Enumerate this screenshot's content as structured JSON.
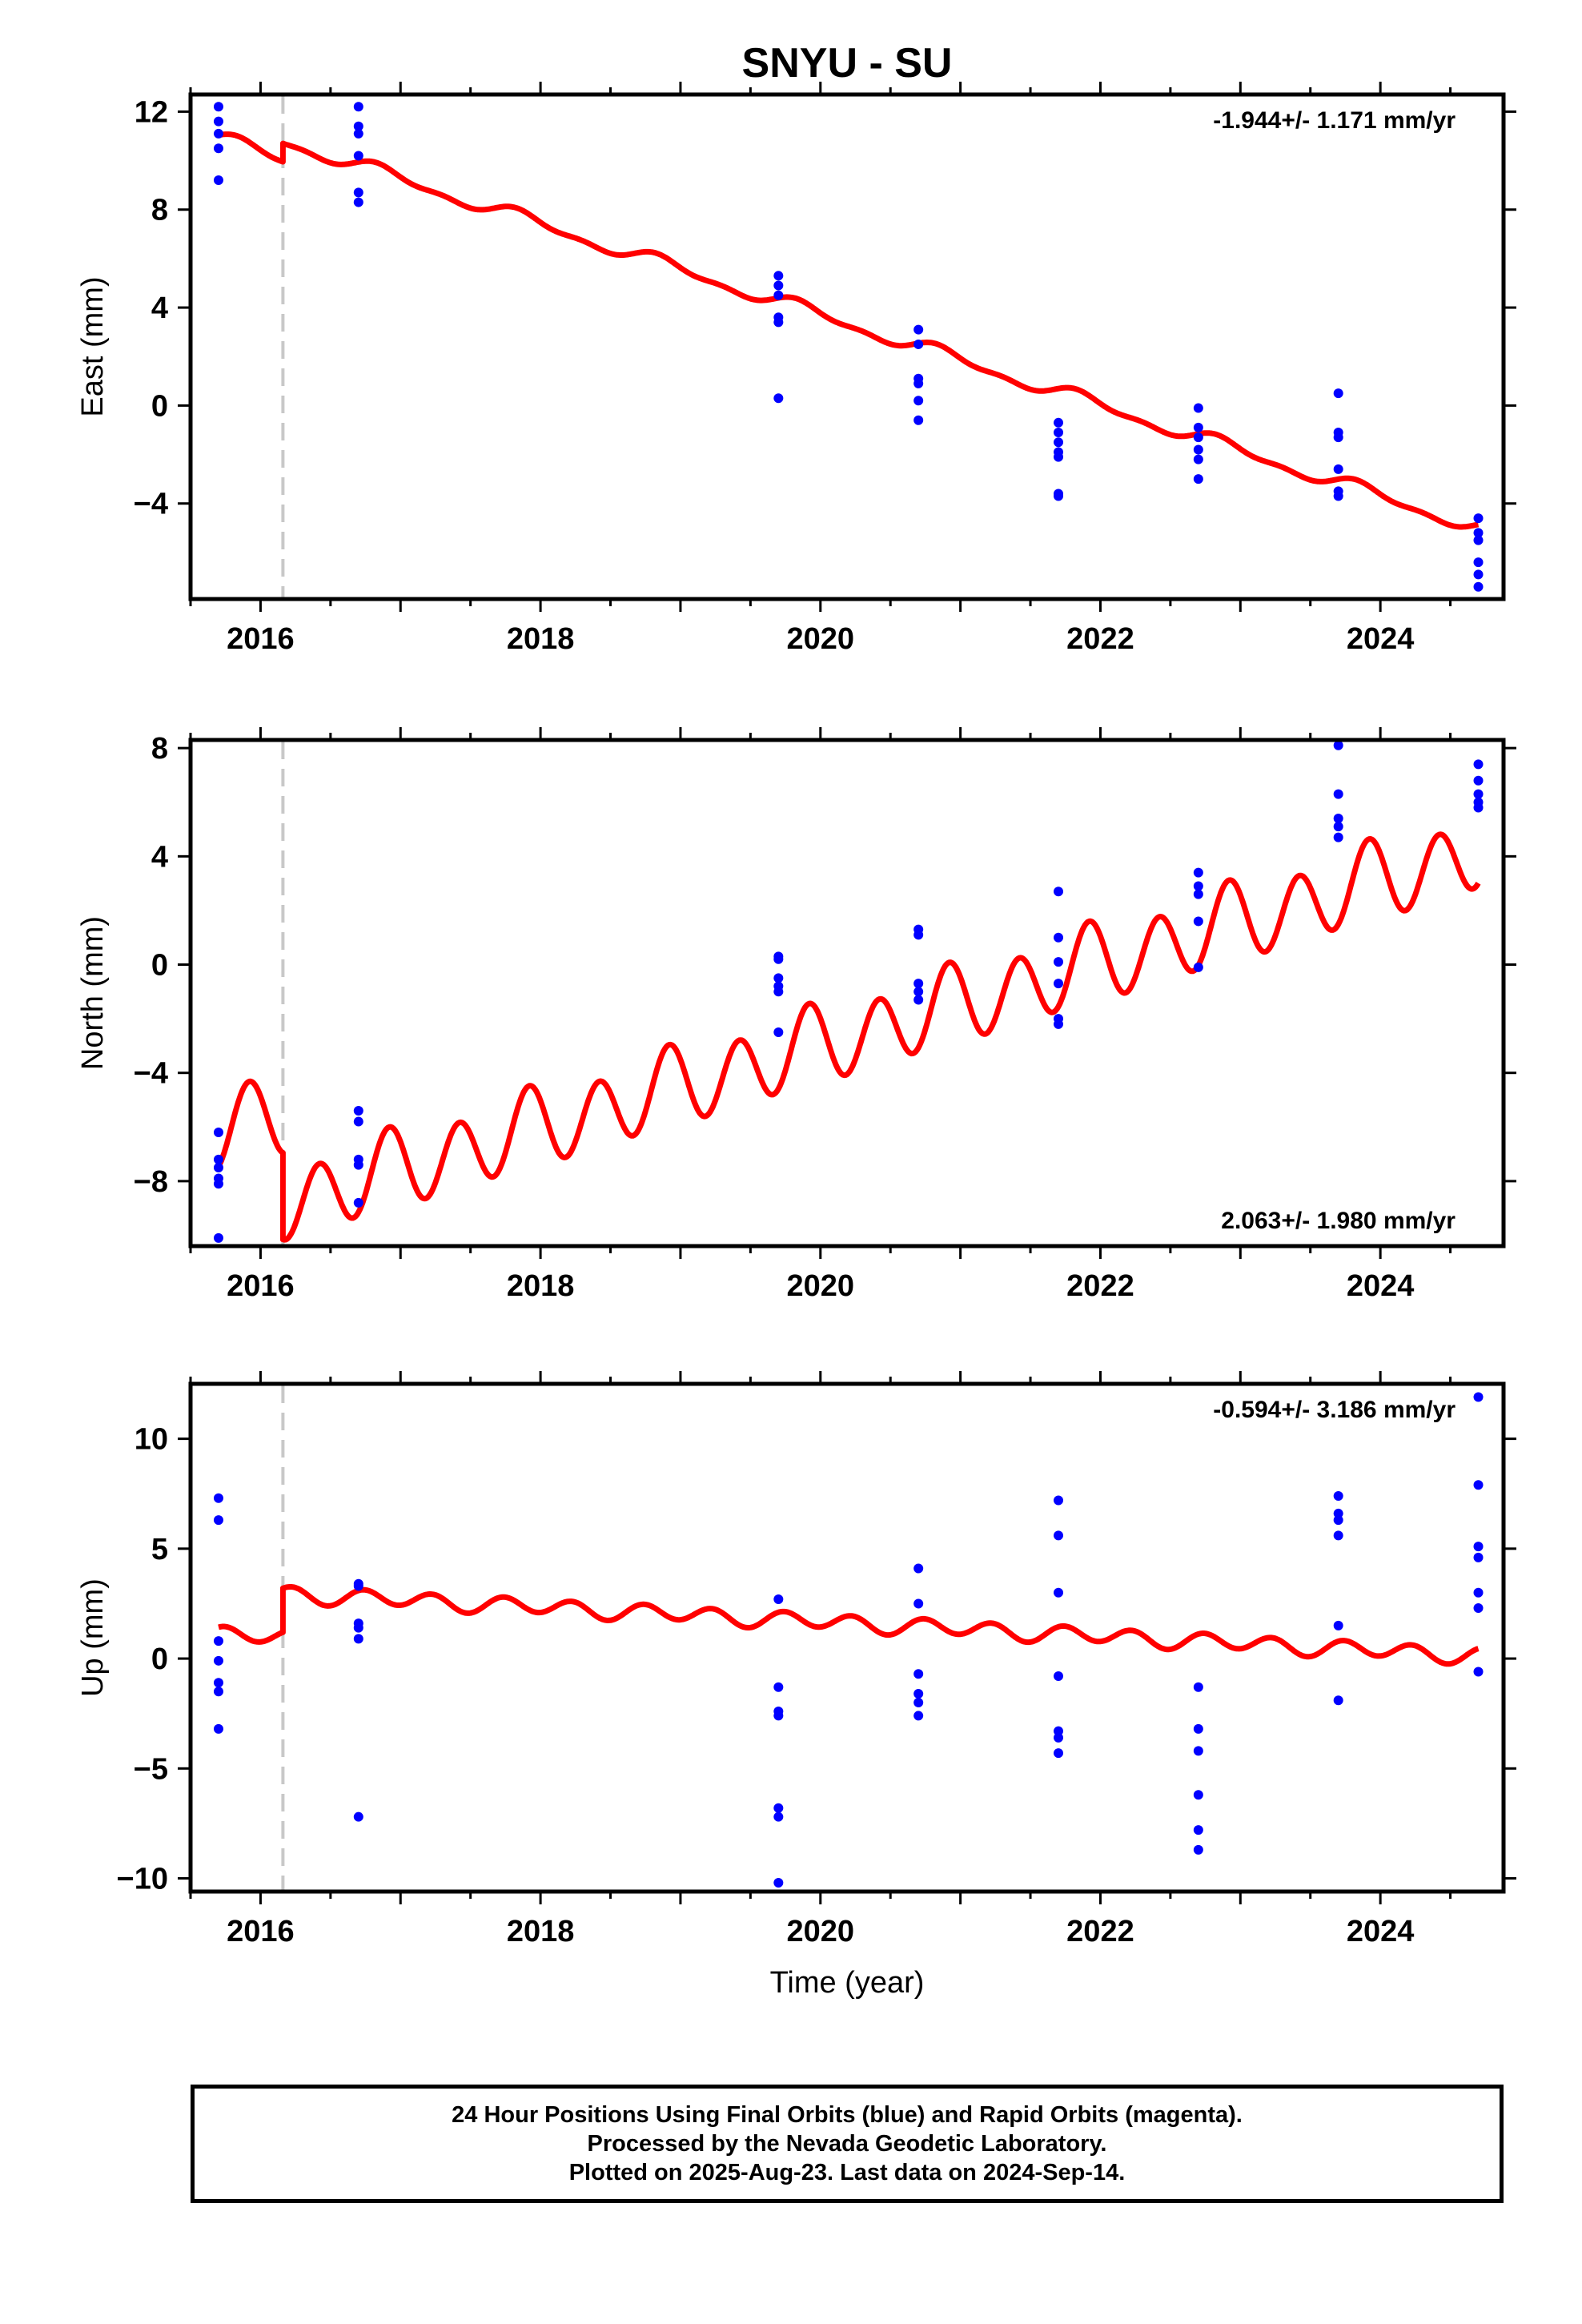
{
  "title": "SNYU - SU",
  "xlabel": "Time (year)",
  "colors": {
    "data": "#0000ff",
    "model": "#ff0000",
    "offset_line": "#c8c8c8",
    "frame": "#000000"
  },
  "footer": {
    "line1": "24 Hour Positions Using Final Orbits (blue) and Rapid Orbits (magenta).",
    "line2": "Processed by the Nevada Geodetic Laboratory.",
    "line3": "Plotted on 2025-Aug-23. Last data on 2024-Sep-14."
  },
  "chart_data": [
    {
      "type": "scatter",
      "ylabel": "East (mm)",
      "rate_text": "-1.944+/- 1.171 mm/yr",
      "rate_position": "top-right",
      "xlim": [
        2015.5,
        2024.88
      ],
      "ylim": [
        -7.9,
        12.7
      ],
      "yticks": [
        -4,
        0,
        4,
        8,
        12
      ],
      "ytick_labels": [
        "−4",
        "0",
        "4",
        "8",
        "12"
      ],
      "xticks": [
        2016,
        2018,
        2020,
        2022,
        2024
      ],
      "xtick_labels": [
        "2016",
        "2018",
        "2020",
        "2022",
        "2024"
      ],
      "offset_epoch": 2016.16,
      "model": {
        "intercept": 10.9,
        "rate": -1.85,
        "ref_epoch": 2015.7,
        "annual_amp": 0.25,
        "annual_phase": 0.5,
        "semiannual_amp": 0.12,
        "semiannual_phase": 0.2,
        "step": 0.75
      },
      "points": [
        [
          2015.7,
          12.2
        ],
        [
          2015.7,
          11.6
        ],
        [
          2015.7,
          11.1
        ],
        [
          2015.7,
          10.5
        ],
        [
          2015.7,
          9.2
        ],
        [
          2016.7,
          12.2
        ],
        [
          2016.7,
          11.4
        ],
        [
          2016.7,
          11.1
        ],
        [
          2016.7,
          10.2
        ],
        [
          2016.7,
          8.7
        ],
        [
          2016.7,
          8.3
        ],
        [
          2019.7,
          5.3
        ],
        [
          2019.7,
          4.9
        ],
        [
          2019.7,
          4.5
        ],
        [
          2019.7,
          3.6
        ],
        [
          2019.7,
          3.4
        ],
        [
          2019.7,
          0.3
        ],
        [
          2020.7,
          3.1
        ],
        [
          2020.7,
          2.5
        ],
        [
          2020.7,
          1.1
        ],
        [
          2020.7,
          0.9
        ],
        [
          2020.7,
          0.2
        ],
        [
          2020.7,
          -0.6
        ],
        [
          2021.7,
          -0.7
        ],
        [
          2021.7,
          -1.1
        ],
        [
          2021.7,
          -1.5
        ],
        [
          2021.7,
          -1.9
        ],
        [
          2021.7,
          -2.1
        ],
        [
          2021.7,
          -3.6
        ],
        [
          2021.7,
          -3.7
        ],
        [
          2022.7,
          -0.1
        ],
        [
          2022.7,
          -0.9
        ],
        [
          2022.7,
          -1.3
        ],
        [
          2022.7,
          -1.8
        ],
        [
          2022.7,
          -2.2
        ],
        [
          2022.7,
          -3.0
        ],
        [
          2023.7,
          0.5
        ],
        [
          2023.7,
          -1.1
        ],
        [
          2023.7,
          -1.3
        ],
        [
          2023.7,
          -2.6
        ],
        [
          2023.7,
          -3.5
        ],
        [
          2023.7,
          -3.7
        ],
        [
          2024.7,
          -4.6
        ],
        [
          2024.7,
          -5.2
        ],
        [
          2024.7,
          -5.5
        ],
        [
          2024.7,
          -6.4
        ],
        [
          2024.7,
          -6.9
        ],
        [
          2024.7,
          -7.4
        ]
      ]
    },
    {
      "type": "scatter",
      "ylabel": "North (mm)",
      "rate_text": "2.063+/- 1.980 mm/yr",
      "rate_position": "bottom-right",
      "xlim": [
        2015.5,
        2024.88
      ],
      "ylim": [
        -10.4,
        8.3
      ],
      "yticks": [
        -8,
        -4,
        0,
        4,
        8
      ],
      "ytick_labels": [
        "−8",
        "−4",
        "0",
        "4",
        "8"
      ],
      "xticks": [
        2016,
        2018,
        2020,
        2022,
        2024
      ],
      "xtick_labels": [
        "2016",
        "2018",
        "2020",
        "2022",
        "2024"
      ],
      "offset_epoch": 2016.16,
      "model": {
        "intercept": -6.3,
        "rate": 1.52,
        "ref_epoch": 2015.7,
        "annual_amp": 0.3,
        "annual_phase": 0.3,
        "semiannual_amp": 1.35,
        "semiannual_phase": -1.2,
        "step": -3.2
      },
      "points": [
        [
          2015.7,
          -6.2
        ],
        [
          2015.7,
          -7.2
        ],
        [
          2015.7,
          -7.5
        ],
        [
          2015.7,
          -7.9
        ],
        [
          2015.7,
          -8.1
        ],
        [
          2015.7,
          -10.1
        ],
        [
          2016.7,
          -5.4
        ],
        [
          2016.7,
          -5.8
        ],
        [
          2016.7,
          -7.2
        ],
        [
          2016.7,
          -7.4
        ],
        [
          2016.7,
          -8.8
        ],
        [
          2019.7,
          0.3
        ],
        [
          2019.7,
          0.2
        ],
        [
          2019.7,
          -0.5
        ],
        [
          2019.7,
          -0.8
        ],
        [
          2019.7,
          -1.0
        ],
        [
          2019.7,
          -2.5
        ],
        [
          2020.7,
          1.3
        ],
        [
          2020.7,
          1.1
        ],
        [
          2020.7,
          -0.7
        ],
        [
          2020.7,
          -1.0
        ],
        [
          2020.7,
          -1.3
        ],
        [
          2021.7,
          2.7
        ],
        [
          2021.7,
          1.0
        ],
        [
          2021.7,
          0.1
        ],
        [
          2021.7,
          -0.7
        ],
        [
          2021.7,
          -2.0
        ],
        [
          2021.7,
          -2.2
        ],
        [
          2022.7,
          3.4
        ],
        [
          2022.7,
          2.9
        ],
        [
          2022.7,
          2.6
        ],
        [
          2022.7,
          1.6
        ],
        [
          2022.7,
          -0.1
        ],
        [
          2023.7,
          8.1
        ],
        [
          2023.7,
          6.3
        ],
        [
          2023.7,
          5.4
        ],
        [
          2023.7,
          5.1
        ],
        [
          2023.7,
          4.7
        ],
        [
          2024.7,
          7.4
        ],
        [
          2024.7,
          6.8
        ],
        [
          2024.7,
          6.3
        ],
        [
          2024.7,
          6.0
        ],
        [
          2024.7,
          5.8
        ]
      ]
    },
    {
      "type": "scatter",
      "ylabel": "Up (mm)",
      "rate_text": "-0.594+/- 3.186 mm/yr",
      "rate_position": "top-right",
      "xlim": [
        2015.5,
        2024.88
      ],
      "ylim": [
        -10.6,
        12.5
      ],
      "yticks": [
        -10,
        -5,
        0,
        5,
        10
      ],
      "ytick_labels": [
        "−10",
        "−5",
        "0",
        "5",
        "10"
      ],
      "xticks": [
        2016,
        2018,
        2020,
        2022,
        2024
      ],
      "xtick_labels": [
        "2016",
        "2018",
        "2020",
        "2022",
        "2024"
      ],
      "offset_epoch": 2016.16,
      "model": {
        "intercept": 1.1,
        "rate": -0.33,
        "ref_epoch": 2015.7,
        "annual_amp": 0.1,
        "annual_phase": 0.0,
        "semiannual_amp": 0.35,
        "semiannual_phase": 1.2,
        "step": 2.0
      },
      "points": [
        [
          2015.7,
          7.3
        ],
        [
          2015.7,
          6.3
        ],
        [
          2015.7,
          0.8
        ],
        [
          2015.7,
          -0.1
        ],
        [
          2015.7,
          -1.1
        ],
        [
          2015.7,
          -1.5
        ],
        [
          2015.7,
          -3.2
        ],
        [
          2016.7,
          3.4
        ],
        [
          2016.7,
          3.3
        ],
        [
          2016.7,
          1.6
        ],
        [
          2016.7,
          1.4
        ],
        [
          2016.7,
          0.9
        ],
        [
          2016.7,
          -7.2
        ],
        [
          2019.7,
          2.7
        ],
        [
          2019.7,
          -1.3
        ],
        [
          2019.7,
          -2.4
        ],
        [
          2019.7,
          -2.6
        ],
        [
          2019.7,
          -6.8
        ],
        [
          2019.7,
          -7.2
        ],
        [
          2019.7,
          -10.2
        ],
        [
          2020.7,
          4.1
        ],
        [
          2020.7,
          2.5
        ],
        [
          2020.7,
          -0.7
        ],
        [
          2020.7,
          -1.6
        ],
        [
          2020.7,
          -2.0
        ],
        [
          2020.7,
          -2.6
        ],
        [
          2021.7,
          7.2
        ],
        [
          2021.7,
          5.6
        ],
        [
          2021.7,
          3.0
        ],
        [
          2021.7,
          -0.8
        ],
        [
          2021.7,
          -3.3
        ],
        [
          2021.7,
          -3.6
        ],
        [
          2021.7,
          -4.3
        ],
        [
          2022.7,
          -1.3
        ],
        [
          2022.7,
          -3.2
        ],
        [
          2022.7,
          -4.2
        ],
        [
          2022.7,
          -6.2
        ],
        [
          2022.7,
          -7.8
        ],
        [
          2022.7,
          -8.7
        ],
        [
          2023.7,
          7.4
        ],
        [
          2023.7,
          6.6
        ],
        [
          2023.7,
          6.3
        ],
        [
          2023.7,
          5.6
        ],
        [
          2023.7,
          1.5
        ],
        [
          2023.7,
          -1.9
        ],
        [
          2024.7,
          11.9
        ],
        [
          2024.7,
          7.9
        ],
        [
          2024.7,
          5.1
        ],
        [
          2024.7,
          4.6
        ],
        [
          2024.7,
          3.0
        ],
        [
          2024.7,
          2.3
        ],
        [
          2024.7,
          -0.6
        ]
      ]
    }
  ]
}
